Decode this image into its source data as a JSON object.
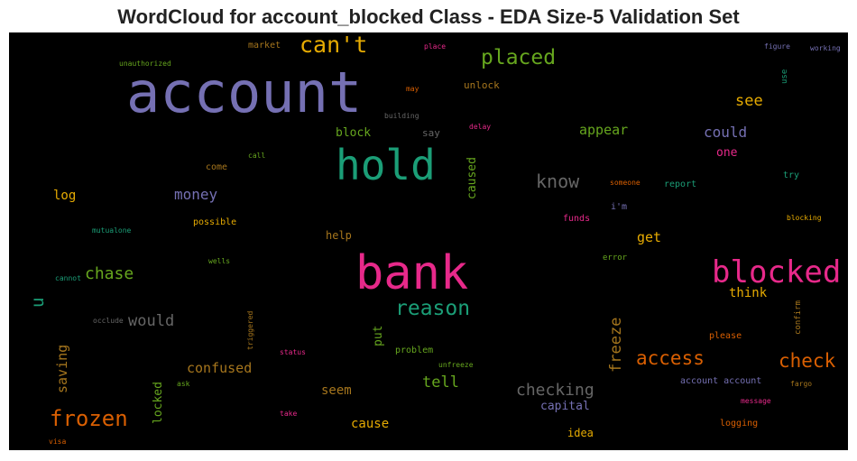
{
  "chart_data": {
    "type": "wordcloud",
    "title": "WordCloud for account_blocked Class - EDA Size-5 Validation Set",
    "background": "#000000",
    "colormap": "Dark2",
    "words": [
      {
        "text": "account",
        "color": "#7570b3"
      },
      {
        "text": "bank",
        "color": "#e7298a"
      },
      {
        "text": "hold",
        "color": "#1b9e77"
      },
      {
        "text": "blocked",
        "color": "#e7298a"
      },
      {
        "text": "can't",
        "color": "#e6ab02"
      },
      {
        "text": "placed",
        "color": "#66a61e"
      },
      {
        "text": "reason",
        "color": "#1b9e77"
      },
      {
        "text": "frozen",
        "color": "#d95f02"
      },
      {
        "text": "access",
        "color": "#d95f02"
      },
      {
        "text": "check",
        "color": "#d95f02"
      },
      {
        "text": "chase",
        "color": "#66a61e"
      },
      {
        "text": "checking",
        "color": "#666666"
      },
      {
        "text": "know",
        "color": "#666666"
      },
      {
        "text": "see",
        "color": "#e6ab02"
      },
      {
        "text": "could",
        "color": "#7570b3"
      },
      {
        "text": "freeze",
        "color": "#a6761d"
      },
      {
        "text": "u",
        "color": "#1b9e77"
      },
      {
        "text": "would",
        "color": "#666666"
      },
      {
        "text": "money",
        "color": "#7570b3"
      },
      {
        "text": "tell",
        "color": "#66a61e"
      },
      {
        "text": "saving",
        "color": "#a6761d"
      },
      {
        "text": "confused",
        "color": "#a6761d"
      },
      {
        "text": "appear",
        "color": "#66a61e"
      },
      {
        "text": "get",
        "color": "#e6ab02"
      },
      {
        "text": "think",
        "color": "#e6ab02"
      },
      {
        "text": "seem",
        "color": "#a6761d"
      },
      {
        "text": "cause",
        "color": "#e6ab02"
      },
      {
        "text": "capital",
        "color": "#7570b3"
      },
      {
        "text": "log",
        "color": "#e6ab02"
      },
      {
        "text": "caused",
        "color": "#66a61e"
      },
      {
        "text": "locked",
        "color": "#66a61e"
      },
      {
        "text": "put",
        "color": "#66a61e"
      },
      {
        "text": "one",
        "color": "#e7298a"
      },
      {
        "text": "block",
        "color": "#66a61e"
      },
      {
        "text": "help",
        "color": "#a6761d"
      },
      {
        "text": "idea",
        "color": "#e6ab02"
      },
      {
        "text": "unlock",
        "color": "#a6761d"
      },
      {
        "text": "say",
        "color": "#666666"
      },
      {
        "text": "market",
        "color": "#a6761d"
      },
      {
        "text": "come",
        "color": "#a6761d"
      },
      {
        "text": "possible",
        "color": "#e6ab02"
      },
      {
        "text": "i'm",
        "color": "#7570b3"
      },
      {
        "text": "funds",
        "color": "#e7298a"
      },
      {
        "text": "report",
        "color": "#1b9e77"
      },
      {
        "text": "try",
        "color": "#1b9e77"
      },
      {
        "text": "problem",
        "color": "#66a61e"
      },
      {
        "text": "please",
        "color": "#d95f02"
      },
      {
        "text": "account account",
        "color": "#7570b3"
      },
      {
        "text": "logging",
        "color": "#d95f02"
      },
      {
        "text": "use",
        "color": "#1b9e77"
      },
      {
        "text": "confirm",
        "color": "#a6761d"
      },
      {
        "text": "error",
        "color": "#66a61e"
      },
      {
        "text": "unauthorized",
        "color": "#66a61e"
      },
      {
        "text": "place",
        "color": "#e7298a"
      },
      {
        "text": "figure",
        "color": "#7570b3"
      },
      {
        "text": "working",
        "color": "#7570b3"
      },
      {
        "text": "may",
        "color": "#d95f02"
      },
      {
        "text": "building",
        "color": "#666666"
      },
      {
        "text": "delay",
        "color": "#e7298a"
      },
      {
        "text": "call",
        "color": "#66a61e"
      },
      {
        "text": "someone",
        "color": "#d95f02"
      },
      {
        "text": "blocking",
        "color": "#e6ab02"
      },
      {
        "text": "mutualone",
        "color": "#1b9e77"
      },
      {
        "text": "wells",
        "color": "#66a61e"
      },
      {
        "text": "cannot",
        "color": "#1b9e77"
      },
      {
        "text": "occlude",
        "color": "#666666"
      },
      {
        "text": "triggered",
        "color": "#a6761d"
      },
      {
        "text": "status",
        "color": "#e7298a"
      },
      {
        "text": "unfreeze",
        "color": "#66a61e"
      },
      {
        "text": "ask",
        "color": "#66a61e"
      },
      {
        "text": "take",
        "color": "#e7298a"
      },
      {
        "text": "message",
        "color": "#e7298a"
      },
      {
        "text": "fargo",
        "color": "#a6761d"
      },
      {
        "text": "visa",
        "color": "#d95f02"
      }
    ]
  }
}
